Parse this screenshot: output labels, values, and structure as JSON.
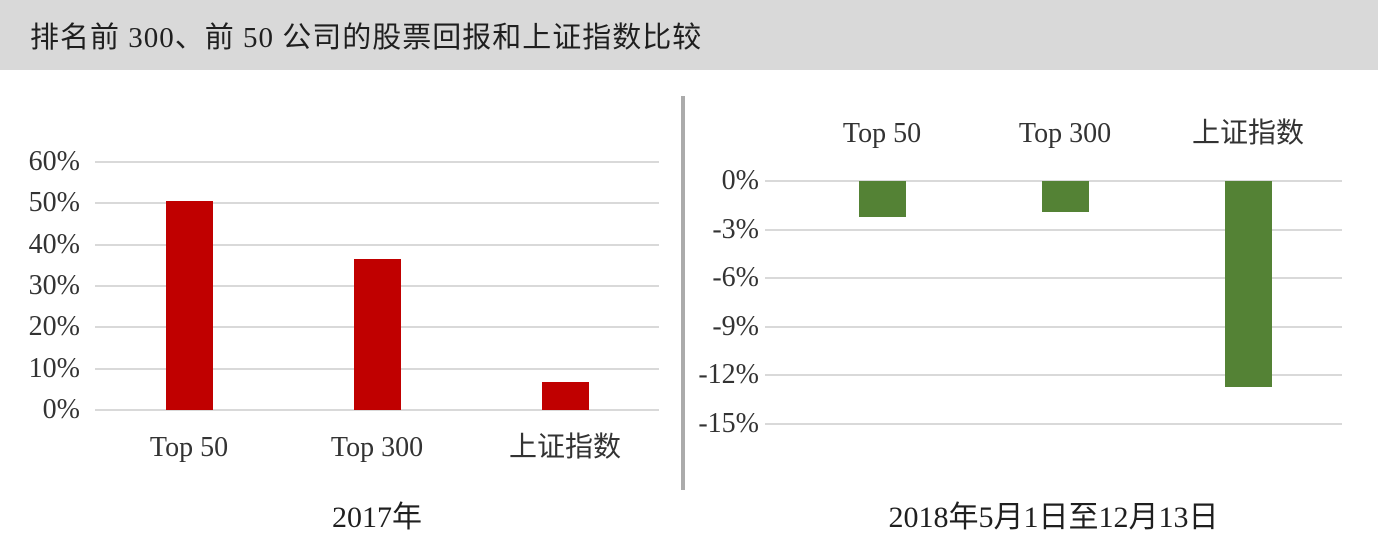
{
  "header": {
    "title": "排名前 300、前 50 公司的股票回报和上证指数比较"
  },
  "colors": {
    "header_bg": "#D9D9D9",
    "red_bar": "#C00000",
    "green_bar": "#548235",
    "gridline": "#D9D9D9",
    "divider": "#ABABAB"
  },
  "chart_data": [
    {
      "type": "bar",
      "panel": "left",
      "axis_title": "2017年",
      "categories": [
        "Top 50",
        "Top 300",
        "上证指数"
      ],
      "values": [
        50.5,
        36.5,
        6.8
      ],
      "value_unit": "%",
      "bar_color": "#C00000",
      "ylim": [
        0,
        60
      ],
      "ytick_labels": [
        "60%",
        "50%",
        "40%",
        "30%",
        "20%",
        "10%",
        "0%"
      ],
      "ytick_values": [
        60,
        50,
        40,
        30,
        20,
        10,
        0
      ],
      "grid": true,
      "legend": "none",
      "category_labels_position": "bottom"
    },
    {
      "type": "bar",
      "panel": "right",
      "axis_title": "2018年5月1日至12月13日",
      "categories": [
        "Top 50",
        "Top 300",
        "上证指数"
      ],
      "values": [
        -2.2,
        -1.9,
        -12.7
      ],
      "value_unit": "%",
      "bar_color": "#548235",
      "ylim": [
        -15,
        0
      ],
      "ytick_labels": [
        "0%",
        "-3%",
        "-6%",
        "-9%",
        "-12%",
        "-15%"
      ],
      "ytick_values": [
        0,
        -3,
        -6,
        -9,
        -12,
        -15
      ],
      "grid": true,
      "legend": "none",
      "category_labels_position": "top"
    }
  ]
}
